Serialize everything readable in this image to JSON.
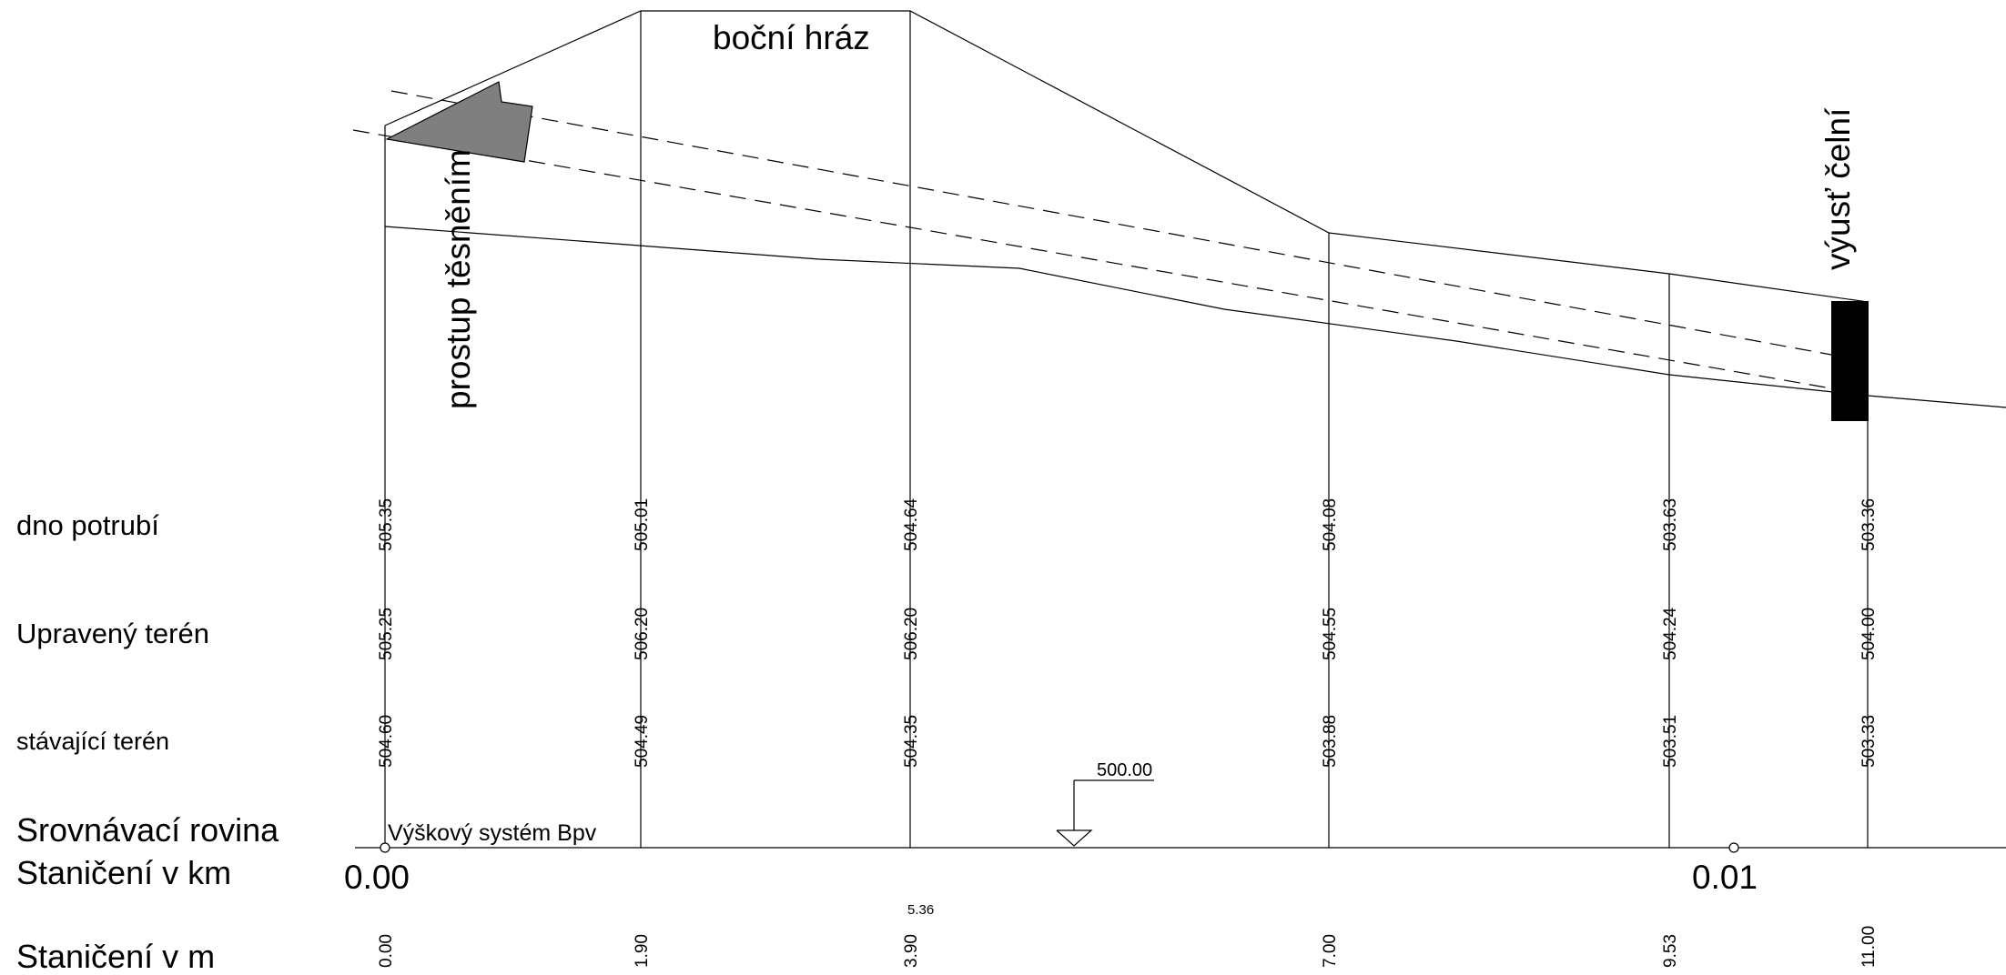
{
  "labels": {
    "dam": "boční hráz",
    "seal": "prostup těsněním",
    "outlet": "výusť čelní",
    "height_system": "Výškový systém Bpv",
    "datum_value": "500.00"
  },
  "rows": {
    "pipe_bottom": "dno potrubí",
    "adjusted_terrain": "Upravený terén",
    "existing_terrain": "stávající terén",
    "reference_plane": "Srovnávací rovina",
    "stationing_km": "Staničení v km",
    "stationing_m": "Staničení v m"
  },
  "stations": [
    {
      "m": "0.00",
      "pipe": "505.35",
      "adjusted": "505.25",
      "existing": "504.60"
    },
    {
      "m": "1.90",
      "pipe": "505.01",
      "adjusted": "506.20",
      "existing": "504.49"
    },
    {
      "m": "3.90",
      "pipe": "504.64",
      "adjusted": "506.20",
      "existing": "504.35"
    },
    {
      "m": "7.00",
      "pipe": "504.08",
      "adjusted": "504.55",
      "existing": "503.88"
    },
    {
      "m": "9.53",
      "pipe": "503.63",
      "adjusted": "504.24",
      "existing": "503.51"
    },
    {
      "m": "11.00",
      "pipe": "503.36",
      "adjusted": "504.00",
      "existing": "503.33"
    }
  ],
  "km_marks": [
    "0.00",
    "0.01"
  ],
  "extra_station": "5.36"
}
